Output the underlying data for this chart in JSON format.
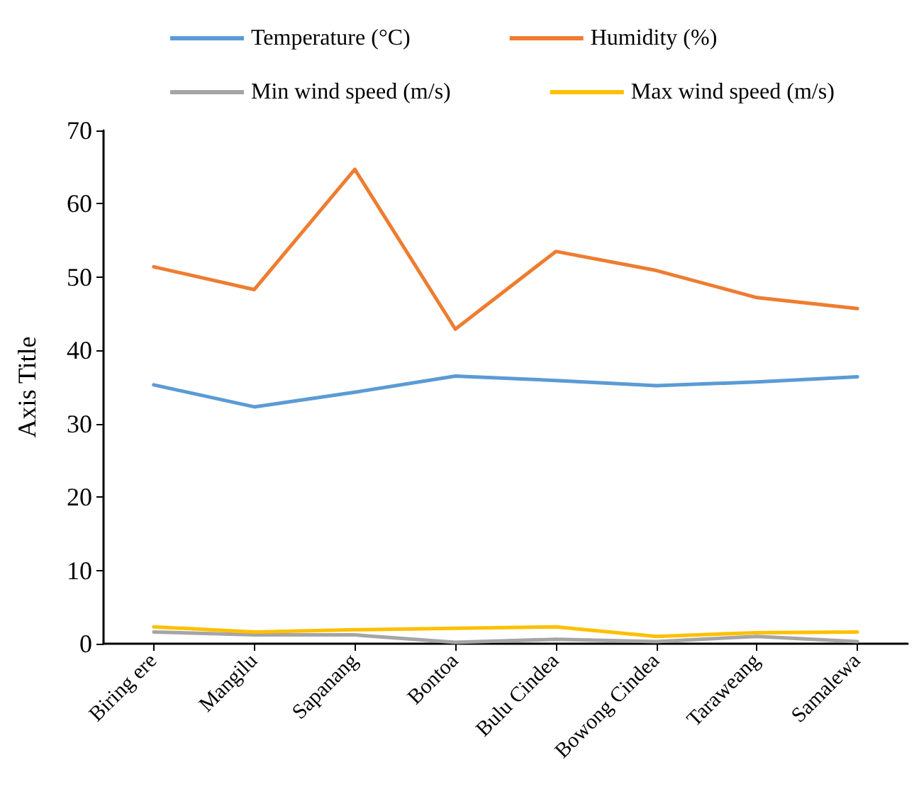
{
  "chart_data": {
    "type": "line",
    "ylabel": "Axis Title",
    "categories": [
      "Biring ere",
      "Mangilu",
      "Sapanang",
      "Bontoa",
      "Bulu Cindea",
      "Bowong Cindea",
      "Taraweang",
      "Samalewa"
    ],
    "series": [
      {
        "name": "Temperature (°C)",
        "color": "#5b9bd5",
        "values": [
          35.3,
          32.3,
          34.3,
          36.5,
          35.9,
          35.2,
          35.7,
          36.4
        ]
      },
      {
        "name": "Humidity (%)",
        "color": "#ed7d31",
        "values": [
          51.4,
          48.3,
          64.7,
          42.9,
          53.5,
          50.9,
          47.2,
          45.7
        ]
      },
      {
        "name": "Min wind speed (m/s)",
        "color": "#a5a5a5",
        "values": [
          1.6,
          1.2,
          1.2,
          0.2,
          0.6,
          0.3,
          1.0,
          0.3
        ]
      },
      {
        "name": "Max wind speed (m/s)",
        "color": "#ffc000",
        "values": [
          2.3,
          1.6,
          1.9,
          2.1,
          2.3,
          1.0,
          1.5,
          1.6
        ]
      }
    ],
    "ylim": [
      0,
      70
    ],
    "yticks": [
      0,
      10,
      20,
      30,
      40,
      50,
      60,
      70
    ],
    "grid": false,
    "legend": "top",
    "marker": "none",
    "line_style": "solid"
  }
}
